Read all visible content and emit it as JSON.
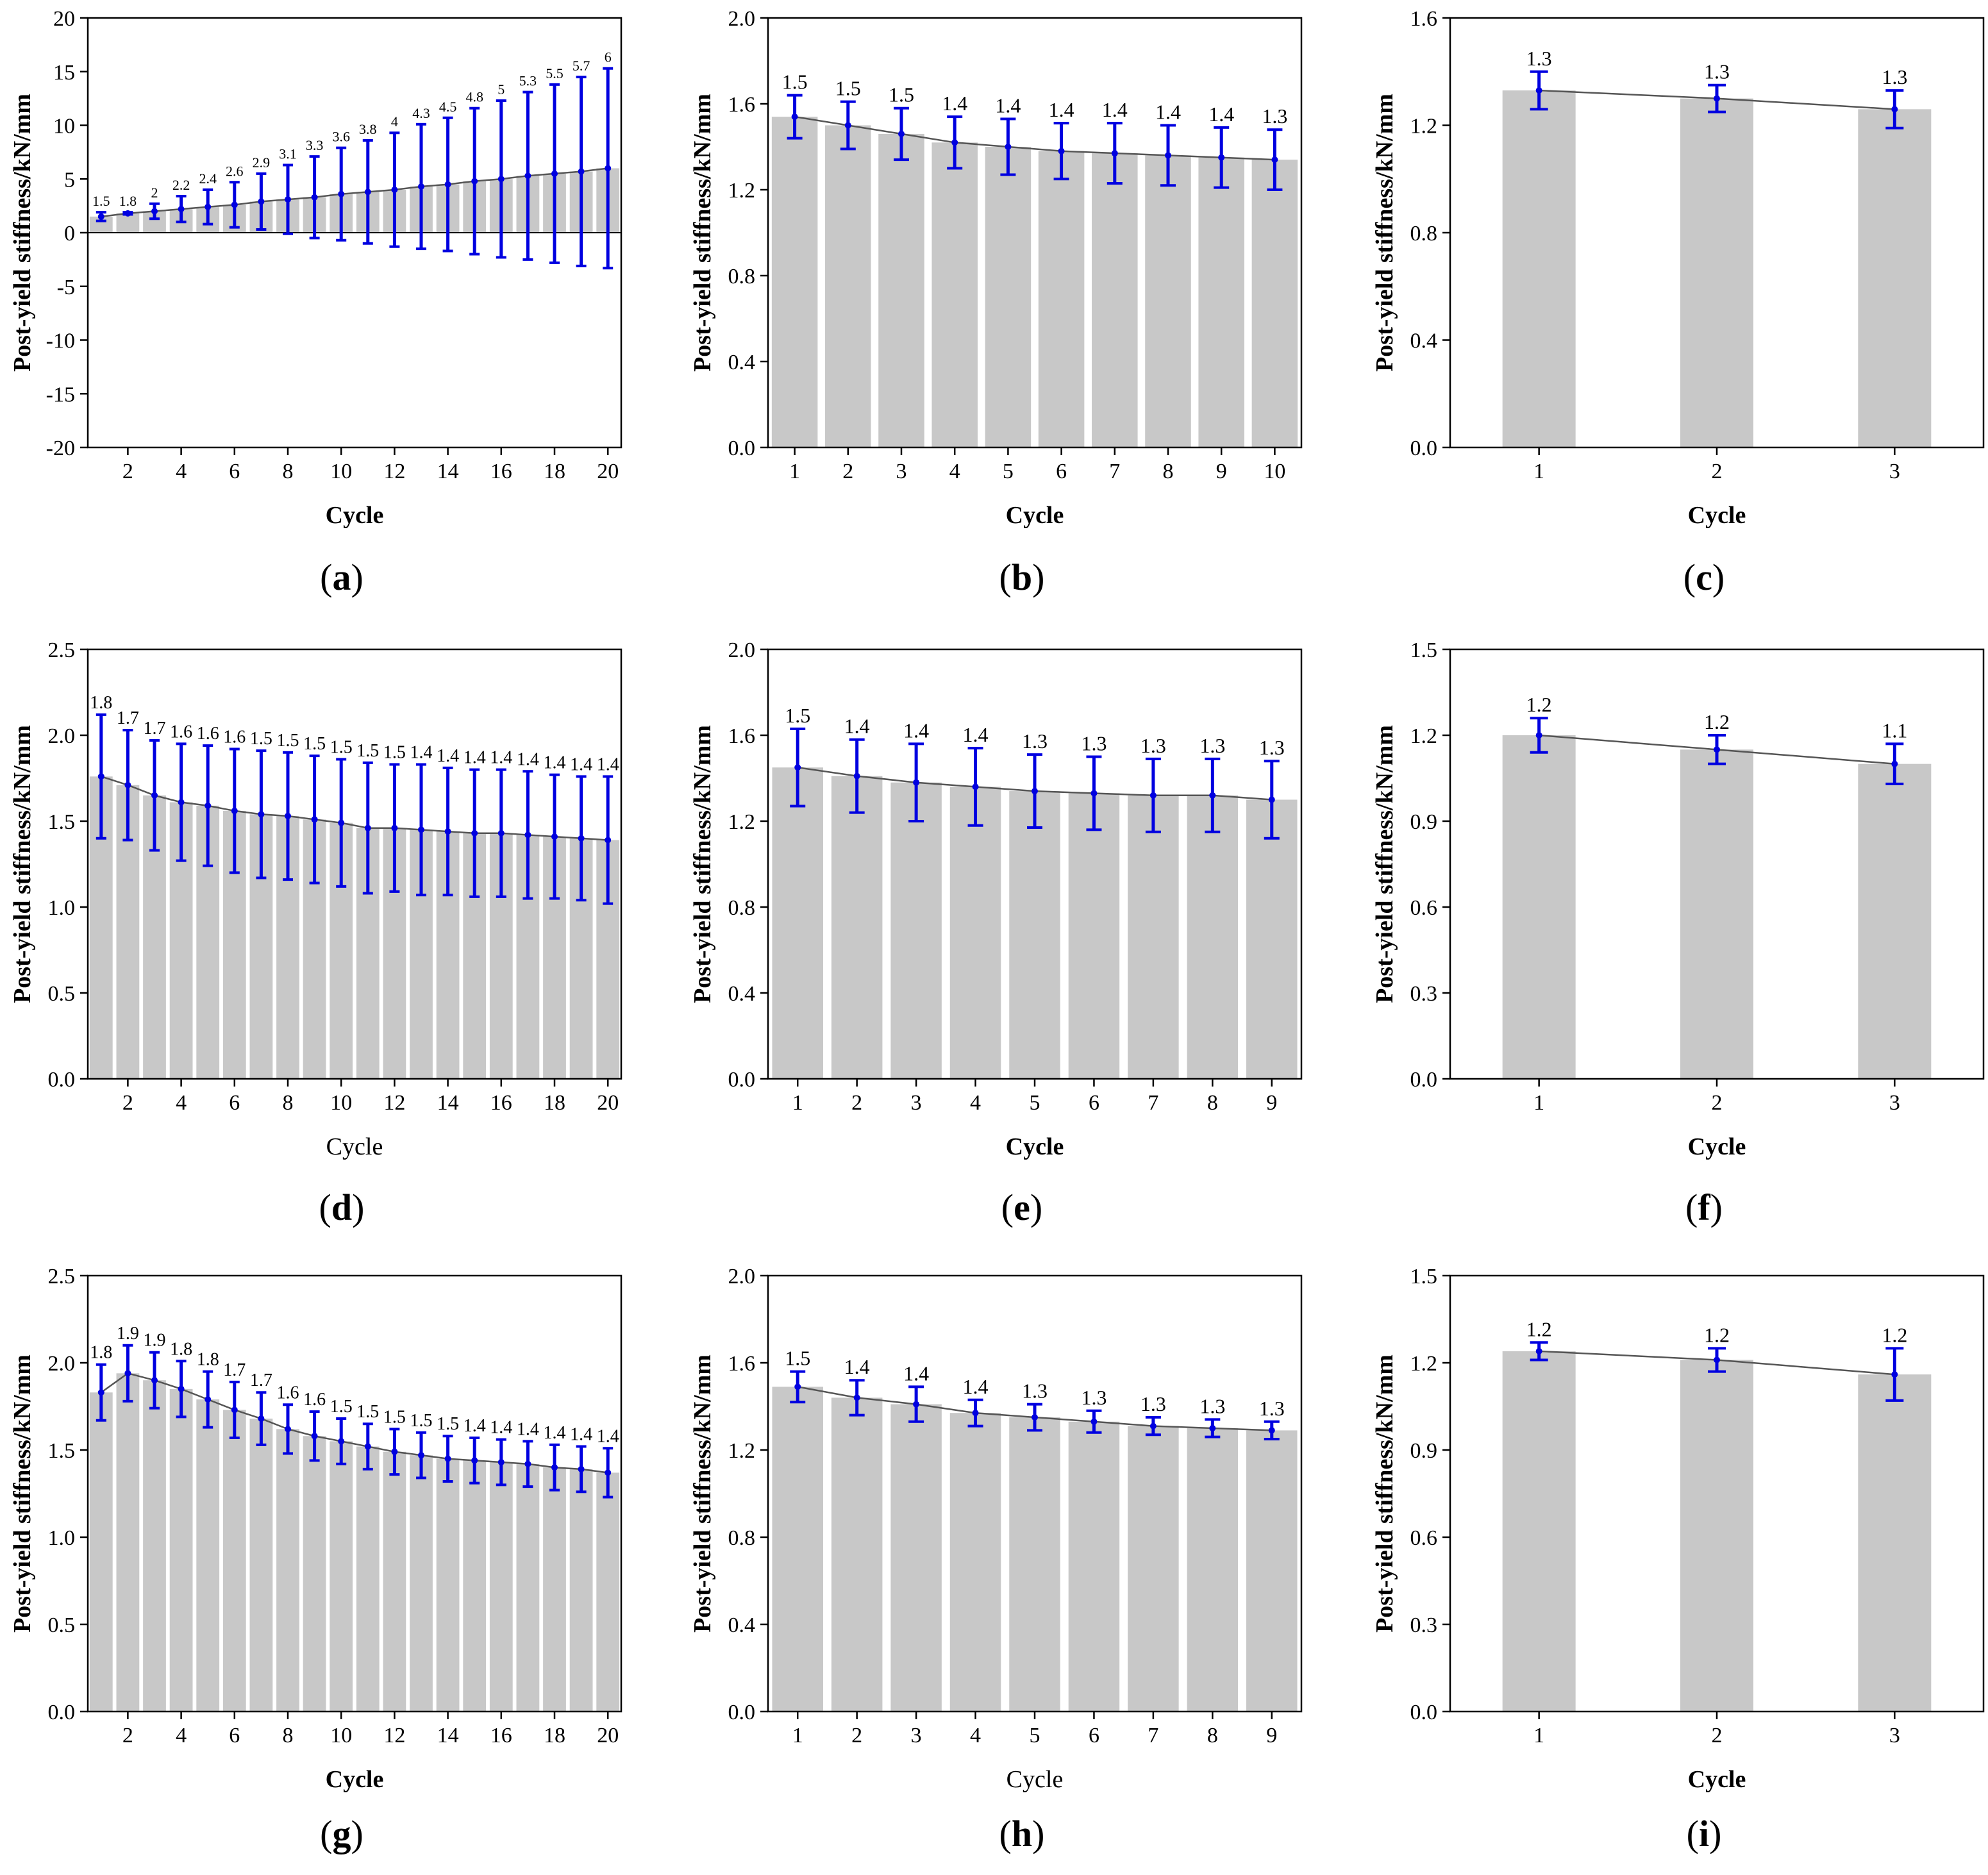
{
  "figure": {
    "bar_color": "#c8c8c8",
    "error_color": "#0000e0",
    "line_color": "#555555"
  },
  "chart_data": [
    {
      "panel": "(a)",
      "panel_letter": "a",
      "type": "bar",
      "xlabel": "Cycle",
      "ylabel": "Post-yield stiffness/kN/mm",
      "ylim": [
        -20,
        20
      ],
      "yticks": [
        "-20",
        "-15",
        "-10",
        "-5",
        "0",
        "5",
        "10",
        "15",
        "20"
      ],
      "xticks": [
        2,
        4,
        6,
        8,
        10,
        12,
        14,
        16,
        18,
        20
      ],
      "categories": [
        1,
        2,
        3,
        4,
        5,
        6,
        7,
        8,
        9,
        10,
        11,
        12,
        13,
        14,
        15,
        16,
        17,
        18,
        19,
        20
      ],
      "values": [
        1.5,
        1.8,
        2,
        2.2,
        2.4,
        2.6,
        2.9,
        3.1,
        3.3,
        3.6,
        3.8,
        4,
        4.3,
        4.5,
        4.8,
        5,
        5.3,
        5.5,
        5.7,
        6
      ],
      "labels": [
        "1.5",
        "1.8",
        "2",
        "2.2",
        "2.4",
        "2.6",
        "2.9",
        "3.1",
        "3.3",
        "3.6",
        "3.8",
        "4",
        "4.3",
        "4.5",
        "4.8",
        "5",
        "5.3",
        "5.5",
        "5.7",
        "6"
      ],
      "errors": [
        0.4,
        0.1,
        0.7,
        1.2,
        1.6,
        2.1,
        2.6,
        3.2,
        3.8,
        4.3,
        4.8,
        5.3,
        5.8,
        6.2,
        6.8,
        7.3,
        7.8,
        8.3,
        8.8,
        9.3
      ]
    },
    {
      "panel": "(b)",
      "panel_letter": "b",
      "type": "bar",
      "xlabel": "Cycle",
      "ylabel": "Post-yield stiffness/kN/mm",
      "ylim": [
        0,
        2.0
      ],
      "yticks": [
        "0.0",
        "0.4",
        "0.8",
        "1.2",
        "1.6",
        "2.0"
      ],
      "xticks": [
        1,
        2,
        3,
        4,
        5,
        6,
        7,
        8,
        9,
        10
      ],
      "categories": [
        1,
        2,
        3,
        4,
        5,
        6,
        7,
        8,
        9,
        10
      ],
      "values": [
        1.54,
        1.5,
        1.46,
        1.42,
        1.4,
        1.38,
        1.37,
        1.36,
        1.35,
        1.34
      ],
      "labels": [
        "1.5",
        "1.5",
        "1.5",
        "1.4",
        "1.4",
        "1.4",
        "1.4",
        "1.4",
        "1.4",
        "1.3"
      ],
      "errors": [
        0.1,
        0.11,
        0.12,
        0.12,
        0.13,
        0.13,
        0.14,
        0.14,
        0.14,
        0.14
      ]
    },
    {
      "panel": "(c)",
      "panel_letter": "c",
      "type": "bar",
      "xlabel": "Cycle",
      "ylabel": "Post-yield stiffness/kN/mm",
      "ylim": [
        0,
        1.6
      ],
      "yticks": [
        "0.0",
        "0.4",
        "0.8",
        "1.2",
        "1.6"
      ],
      "xticks": [
        1,
        2,
        3
      ],
      "categories": [
        1,
        2,
        3
      ],
      "values": [
        1.33,
        1.3,
        1.26
      ],
      "labels": [
        "1.3",
        "1.3",
        "1.3"
      ],
      "errors": [
        0.07,
        0.05,
        0.07
      ]
    },
    {
      "panel": "(d)",
      "panel_letter": "d",
      "type": "bar",
      "xlabel": "Cycle",
      "ylabel": "Post-yield stiffness/kN/mm",
      "ylim": [
        0,
        2.5
      ],
      "yticks": [
        "0.0",
        "0.5",
        "1.0",
        "1.5",
        "2.0",
        "2.5"
      ],
      "xticks": [
        2,
        4,
        6,
        8,
        10,
        12,
        14,
        16,
        18,
        20
      ],
      "categories": [
        1,
        2,
        3,
        4,
        5,
        6,
        7,
        8,
        9,
        10,
        11,
        12,
        13,
        14,
        15,
        16,
        17,
        18,
        19,
        20
      ],
      "values": [
        1.76,
        1.71,
        1.65,
        1.61,
        1.59,
        1.56,
        1.54,
        1.53,
        1.51,
        1.49,
        1.46,
        1.46,
        1.45,
        1.44,
        1.43,
        1.43,
        1.42,
        1.41,
        1.4,
        1.39
      ],
      "labels": [
        "1.8",
        "1.7",
        "1.7",
        "1.6",
        "1.6",
        "1.6",
        "1.5",
        "1.5",
        "1.5",
        "1.5",
        "1.5",
        "1.5",
        "1.4",
        "1.4",
        "1.4",
        "1.4",
        "1.4",
        "1.4",
        "1.4",
        "1.4"
      ],
      "errors": [
        0.36,
        0.32,
        0.32,
        0.34,
        0.35,
        0.36,
        0.37,
        0.37,
        0.37,
        0.37,
        0.38,
        0.37,
        0.38,
        0.37,
        0.37,
        0.37,
        0.37,
        0.36,
        0.36,
        0.37
      ]
    },
    {
      "panel": "(e)",
      "panel_letter": "e",
      "type": "bar",
      "xlabel": "Cycle",
      "ylabel": "Post-yield stiffness/kN/mm",
      "ylim": [
        0,
        2.0
      ],
      "yticks": [
        "0.0",
        "0.4",
        "0.8",
        "1.2",
        "1.6",
        "2.0"
      ],
      "xticks": [
        1,
        2,
        3,
        4,
        5,
        6,
        7,
        8,
        9
      ],
      "categories": [
        1,
        2,
        3,
        4,
        5,
        6,
        7,
        8,
        9
      ],
      "values": [
        1.45,
        1.41,
        1.38,
        1.36,
        1.34,
        1.33,
        1.32,
        1.32,
        1.3
      ],
      "labels": [
        "1.5",
        "1.4",
        "1.4",
        "1.4",
        "1.3",
        "1.3",
        "1.3",
        "1.3",
        "1.3"
      ],
      "errors": [
        0.18,
        0.17,
        0.18,
        0.18,
        0.17,
        0.17,
        0.17,
        0.17,
        0.18
      ]
    },
    {
      "panel": "(f)",
      "panel_letter": "f",
      "type": "bar",
      "xlabel": "Cycle",
      "ylabel": "Post-yield stiffness/kN/mm",
      "ylim": [
        0,
        1.5
      ],
      "yticks": [
        "0.0",
        "0.3",
        "0.6",
        "0.9",
        "1.2",
        "1.5"
      ],
      "xticks": [
        1,
        2,
        3
      ],
      "categories": [
        1,
        2,
        3
      ],
      "values": [
        1.2,
        1.15,
        1.1
      ],
      "labels": [
        "1.2",
        "1.2",
        "1.1"
      ],
      "errors": [
        0.06,
        0.05,
        0.07
      ]
    },
    {
      "panel": "(g)",
      "panel_letter": "g",
      "type": "bar",
      "xlabel": "Cycle",
      "ylabel": "Post-yield stiffness/kN/mm",
      "ylim": [
        0,
        2.5
      ],
      "yticks": [
        "0.0",
        "0.5",
        "1.0",
        "1.5",
        "2.0",
        "2.5"
      ],
      "xticks": [
        2,
        4,
        6,
        8,
        10,
        12,
        14,
        16,
        18,
        20
      ],
      "categories": [
        1,
        2,
        3,
        4,
        5,
        6,
        7,
        8,
        9,
        10,
        11,
        12,
        13,
        14,
        15,
        16,
        17,
        18,
        19,
        20
      ],
      "values": [
        1.83,
        1.94,
        1.9,
        1.85,
        1.79,
        1.73,
        1.68,
        1.62,
        1.58,
        1.55,
        1.52,
        1.49,
        1.47,
        1.45,
        1.44,
        1.43,
        1.42,
        1.4,
        1.39,
        1.37
      ],
      "labels": [
        "1.8",
        "1.9",
        "1.9",
        "1.8",
        "1.8",
        "1.7",
        "1.7",
        "1.6",
        "1.6",
        "1.5",
        "1.5",
        "1.5",
        "1.5",
        "1.5",
        "1.4",
        "1.4",
        "1.4",
        "1.4",
        "1.4",
        "1.4"
      ],
      "errors": [
        0.16,
        0.16,
        0.16,
        0.16,
        0.16,
        0.16,
        0.15,
        0.14,
        0.14,
        0.13,
        0.13,
        0.13,
        0.13,
        0.13,
        0.13,
        0.13,
        0.13,
        0.13,
        0.13,
        0.14
      ]
    },
    {
      "panel": "(h)",
      "panel_letter": "h",
      "type": "bar",
      "xlabel": "Cycle",
      "ylabel": "Post-yield stiffness/kN/mm",
      "ylim": [
        0,
        2.0
      ],
      "yticks": [
        "0.0",
        "0.4",
        "0.8",
        "1.2",
        "1.6",
        "2.0"
      ],
      "xticks": [
        1,
        2,
        3,
        4,
        5,
        6,
        7,
        8,
        9
      ],
      "categories": [
        1,
        2,
        3,
        4,
        5,
        6,
        7,
        8,
        9
      ],
      "values": [
        1.49,
        1.44,
        1.41,
        1.37,
        1.35,
        1.33,
        1.31,
        1.3,
        1.29
      ],
      "labels": [
        "1.5",
        "1.4",
        "1.4",
        "1.4",
        "1.3",
        "1.3",
        "1.3",
        "1.3",
        "1.3"
      ],
      "errors": [
        0.07,
        0.08,
        0.08,
        0.06,
        0.06,
        0.05,
        0.04,
        0.04,
        0.04
      ]
    },
    {
      "panel": "(i)",
      "panel_letter": "i",
      "type": "bar",
      "xlabel": "Cycle",
      "ylabel": "Post-yield stiffness/kN/mm",
      "ylim": [
        0,
        1.5
      ],
      "yticks": [
        "0.0",
        "0.3",
        "0.6",
        "0.9",
        "1.2",
        "1.5"
      ],
      "xticks": [
        1,
        2,
        3
      ],
      "categories": [
        1,
        2,
        3
      ],
      "values": [
        1.24,
        1.21,
        1.16
      ],
      "labels": [
        "1.2",
        "1.2",
        "1.2"
      ],
      "errors": [
        0.03,
        0.04,
        0.09
      ]
    }
  ]
}
